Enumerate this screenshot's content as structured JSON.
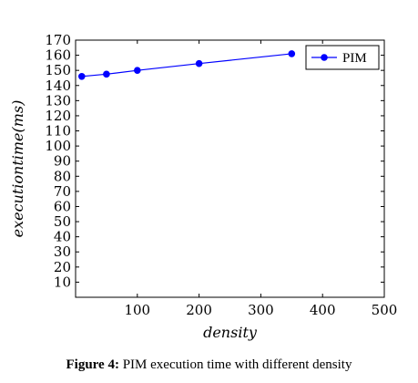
{
  "chart_data": {
    "type": "line",
    "xlabel": "density",
    "ylabel": "executiontime(ms)",
    "xlim": [
      0,
      500
    ],
    "ylim": [
      0,
      170
    ],
    "xticks": [
      100,
      200,
      300,
      400,
      500
    ],
    "yticks": [
      10,
      20,
      30,
      40,
      50,
      60,
      70,
      80,
      90,
      100,
      110,
      120,
      130,
      140,
      150,
      160,
      170
    ],
    "legend_position": "top-right",
    "grid": false,
    "series": [
      {
        "name": "PIM",
        "color": "#0000ff",
        "marker": "circle",
        "x": [
          10,
          50,
          100,
          200,
          350
        ],
        "y": [
          146,
          147.5,
          150,
          154.5,
          161
        ]
      }
    ]
  },
  "caption": {
    "label": "Figure 4:",
    "text": " PIM execution time with different density"
  }
}
